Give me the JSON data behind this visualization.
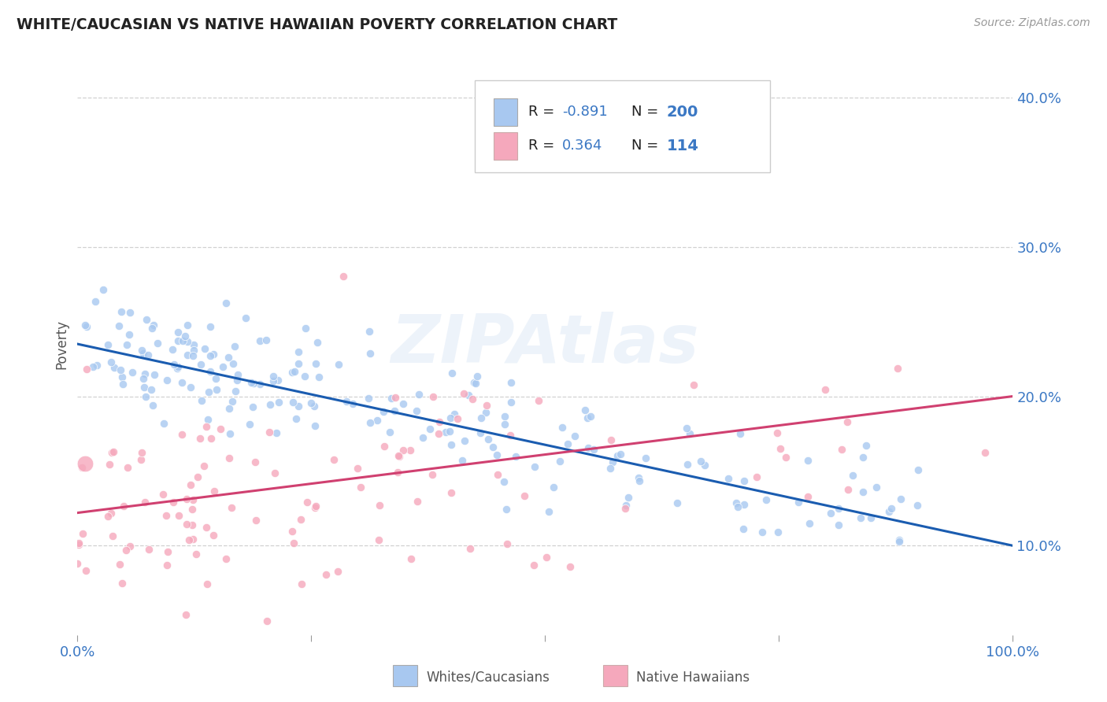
{
  "title": "WHITE/CAUCASIAN VS NATIVE HAWAIIAN POVERTY CORRELATION CHART",
  "source": "Source: ZipAtlas.com",
  "ylabel": "Poverty",
  "watermark": "ZIPAtlas",
  "blue_R": "-0.891",
  "blue_N": 200,
  "pink_R": "0.364",
  "pink_N": 114,
  "blue_color": "#A8C8F0",
  "pink_color": "#F5A8BC",
  "blue_line_color": "#1A5CB0",
  "pink_line_color": "#D04070",
  "title_color": "#222222",
  "axis_label_color": "#3B78C4",
  "background_color": "#FFFFFF",
  "grid_color": "#CCCCCC",
  "xlim": [
    0.0,
    1.0
  ],
  "ylim": [
    0.04,
    0.43
  ],
  "yticks": [
    0.1,
    0.2,
    0.3,
    0.4
  ],
  "ytick_labels": [
    "10.0%",
    "20.0%",
    "30.0%",
    "40.0%"
  ],
  "blue_intercept": 0.235,
  "blue_slope": -0.135,
  "pink_intercept": 0.122,
  "pink_slope": 0.078,
  "dot_size": 55,
  "blue_seed": 42,
  "pink_seed": 13
}
